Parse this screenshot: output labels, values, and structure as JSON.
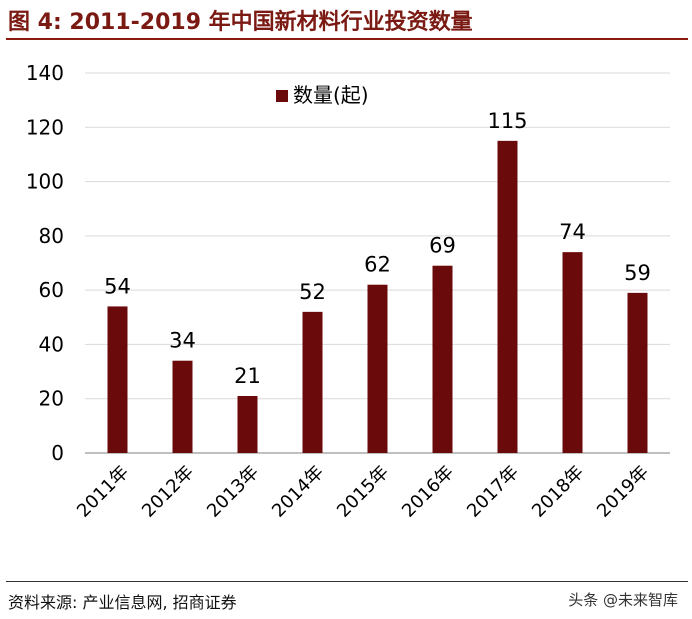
{
  "figure": {
    "title": "图 4:  2011-2019 年中国新材料行业投资数量",
    "source": "资料来源: 产业信息网, 招商证券",
    "watermark": "头条 @未来智库"
  },
  "chart_data": {
    "type": "bar",
    "title": "",
    "xlabel": "",
    "ylabel": "",
    "ylim": [
      0,
      140
    ],
    "yticks": [
      0,
      20,
      40,
      60,
      80,
      100,
      120,
      140
    ],
    "grid": true,
    "legend_position": "top-center",
    "categories": [
      "2011年",
      "2012年",
      "2013年",
      "2014年",
      "2015年",
      "2016年",
      "2017年",
      "2018年",
      "2019年"
    ],
    "series": [
      {
        "name": "数量(起)",
        "color": "#6b0a0a",
        "values": [
          54,
          34,
          21,
          52,
          62,
          69,
          115,
          74,
          59
        ]
      }
    ]
  }
}
